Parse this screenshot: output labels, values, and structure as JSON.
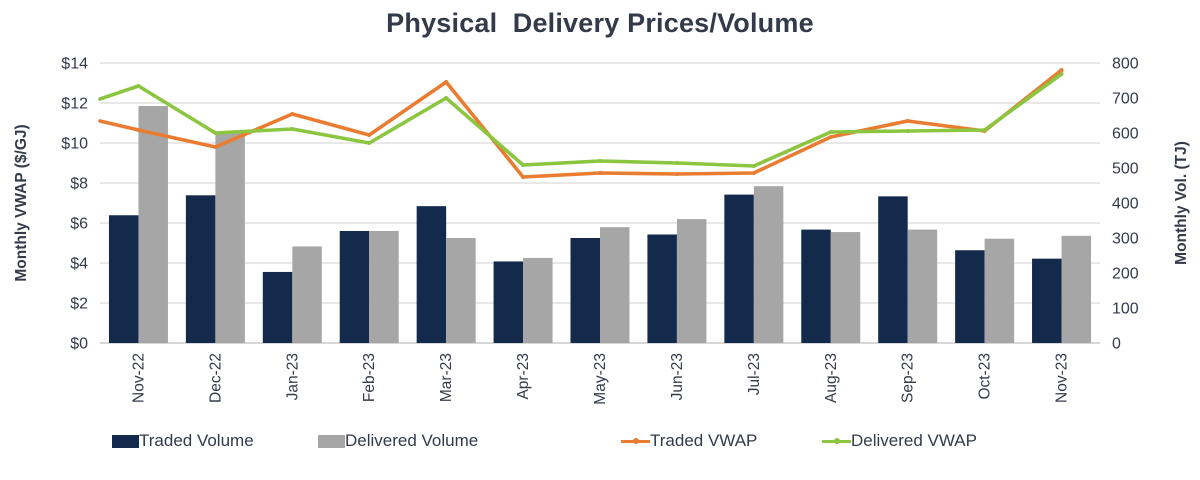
{
  "title": "Physical  Delivery Prices/Volume",
  "chart_data": {
    "type": "combo-bar-line",
    "categories": [
      "Nov-22",
      "Dec-22",
      "Jan-23",
      "Feb-23",
      "Mar-23",
      "Apr-23",
      "May-23",
      "Jun-23",
      "Jul-23",
      "Aug-23",
      "Sep-23",
      "Oct-23",
      "Nov-23"
    ],
    "series": [
      {
        "name": "Traded Volume",
        "type": "bar",
        "axis": "right",
        "color": "#132A4D",
        "values": [
          365,
          422,
          203,
          320,
          391,
          233,
          300,
          310,
          424,
          324,
          419,
          265,
          241
        ]
      },
      {
        "name": "Delivered Volume",
        "type": "bar",
        "axis": "right",
        "color": "#A6A6A6",
        "values": [
          677,
          600,
          276,
          320,
          300,
          243,
          331,
          354,
          448,
          317,
          324,
          298,
          306
        ]
      },
      {
        "name": "Traded VWAP",
        "type": "line",
        "axis": "left",
        "color": "#E97C30",
        "edge_start": 11.1,
        "values": [
          10.65,
          9.8,
          11.45,
          10.4,
          13.05,
          8.3,
          8.5,
          8.45,
          8.5,
          10.3,
          11.1,
          10.6,
          13.65
        ]
      },
      {
        "name": "Delivered VWAP",
        "type": "line",
        "axis": "left",
        "color": "#8CC540",
        "edge_start": 12.2,
        "values": [
          12.85,
          10.5,
          10.7,
          10.0,
          12.25,
          8.9,
          9.1,
          9.0,
          8.85,
          10.55,
          10.6,
          10.65,
          13.45
        ]
      }
    ],
    "left_axis": {
      "title": "Monthly VWAP ($/GJ)",
      "min": 0,
      "max": 14,
      "step": 2,
      "tick_labels": [
        "$0",
        "$2",
        "$4",
        "$6",
        "$8",
        "$10",
        "$12",
        "$14"
      ]
    },
    "right_axis": {
      "title": "Monthly Vol. (TJ)",
      "min": 0,
      "max": 800,
      "step": 100,
      "tick_labels": [
        "0",
        "100",
        "200",
        "300",
        "400",
        "500",
        "600",
        "700",
        "800"
      ]
    },
    "grid": true,
    "legend_position": "bottom",
    "text_color": "#333A49",
    "gridline_color": "#D9D9D9",
    "axisline_color": "#BFBFBF"
  }
}
